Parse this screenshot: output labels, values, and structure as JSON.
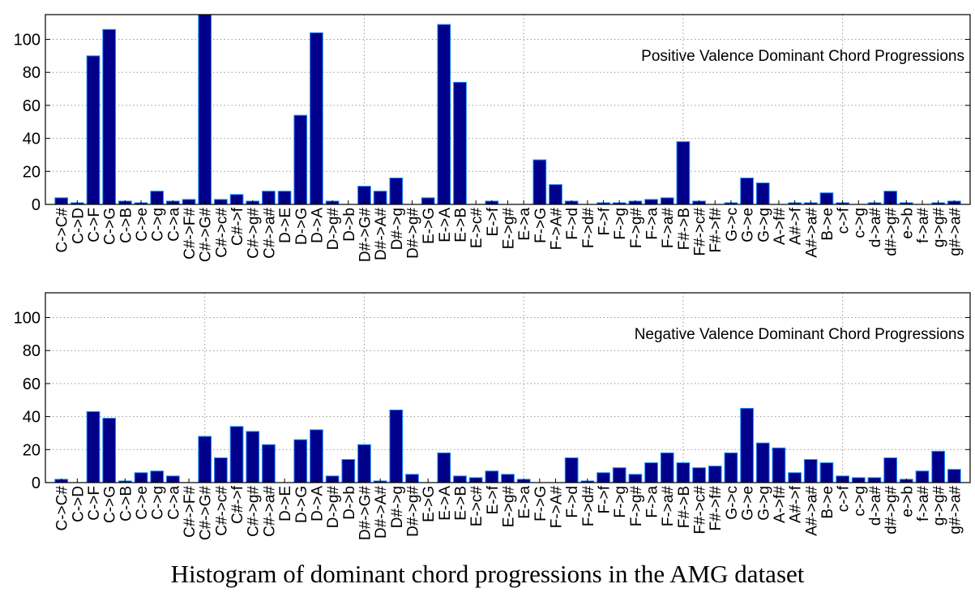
{
  "caption": "Histogram of dominant chord progressions in the AMG dataset",
  "bar_color": "#00008B",
  "bar_edge_color": "#1E90FF",
  "chart_data": [
    {
      "type": "bar",
      "title": "Positive Valence Dominant Chord Progressions",
      "xlabel": "",
      "ylabel": "",
      "ylim": [
        0,
        115
      ],
      "yticks": [
        0,
        20,
        40,
        60,
        80,
        100
      ],
      "grid": true,
      "categories": [
        "C->C#",
        "C->D",
        "C->F",
        "C->G",
        "C->B",
        "C->e",
        "C->g",
        "C->a",
        "C#->F#",
        "C#->G#",
        "C#->c#",
        "C#->f",
        "C#->g#",
        "C#->a#",
        "D->E",
        "D->G",
        "D->A",
        "D->g#",
        "D->b",
        "D#->G#",
        "D#->A#",
        "D#->g",
        "D#->g#",
        "E->G",
        "E->A",
        "E->B",
        "E->c#",
        "E->f",
        "E->g#",
        "E->a",
        "F->G",
        "F->A#",
        "F->d",
        "F->d#",
        "F->f",
        "F->g",
        "F->g#",
        "F->a",
        "F->a#",
        "F#->B",
        "F#->c#",
        "F#->f#",
        "G->c",
        "G->e",
        "G->g",
        "A->f#",
        "A#->f",
        "A#->a#",
        "B->e",
        "c->f",
        "c->g",
        "d->a#",
        "d#->g#",
        "e->b",
        "f->a#",
        "g->g#",
        "g#->a#"
      ],
      "values": [
        4,
        1,
        90,
        106,
        2,
        1,
        8,
        2,
        3,
        117,
        3,
        6,
        2,
        8,
        8,
        54,
        104,
        2,
        0,
        11,
        8,
        16,
        0,
        4,
        109,
        74,
        0,
        2,
        0,
        0,
        27,
        12,
        2,
        0,
        1,
        1,
        2,
        3,
        4,
        38,
        2,
        0,
        1,
        16,
        13,
        0,
        1,
        1,
        7,
        1,
        0,
        1,
        8,
        1,
        0,
        1,
        2
      ]
    },
    {
      "type": "bar",
      "title": "Negative Valence Dominant Chord Progressions",
      "xlabel": "",
      "ylabel": "",
      "ylim": [
        0,
        115
      ],
      "yticks": [
        0,
        20,
        40,
        60,
        80,
        100
      ],
      "grid": true,
      "categories": [
        "C->C#",
        "C->D",
        "C->F",
        "C->G",
        "C->B",
        "C->e",
        "C->g",
        "C->a",
        "C#->F#",
        "C#->G#",
        "C#->c#",
        "C#->f",
        "C#->g#",
        "C#->a#",
        "D->E",
        "D->G",
        "D->A",
        "D->g#",
        "D->b",
        "D#->G#",
        "D#->A#",
        "D#->g",
        "D#->g#",
        "E->G",
        "E->A",
        "E->B",
        "E->c#",
        "E->f",
        "E->g#",
        "E->a",
        "F->G",
        "F->A#",
        "F->d",
        "F->d#",
        "F->f",
        "F->g",
        "F->g#",
        "F->a",
        "F->a#",
        "F#->B",
        "F#->c#",
        "F#->f#",
        "G->c",
        "G->e",
        "G->g",
        "A->f#",
        "A#->f",
        "A#->a#",
        "B->e",
        "c->f",
        "c->g",
        "d->a#",
        "d#->g#",
        "e->b",
        "f->a#",
        "g->g#",
        "g#->a#"
      ],
      "values": [
        2,
        0,
        43,
        39,
        1,
        6,
        7,
        4,
        0,
        28,
        15,
        34,
        31,
        23,
        0,
        26,
        32,
        4,
        14,
        23,
        1,
        44,
        5,
        0,
        18,
        4,
        3,
        7,
        5,
        2,
        0,
        0,
        15,
        1,
        6,
        9,
        5,
        12,
        18,
        12,
        9,
        10,
        18,
        45,
        24,
        21,
        6,
        14,
        12,
        4,
        3,
        3,
        15,
        2,
        7,
        19,
        8
      ]
    }
  ]
}
